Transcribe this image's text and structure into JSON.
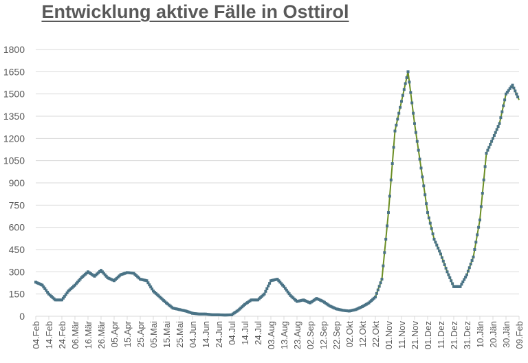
{
  "chart_data": {
    "type": "line",
    "title": "Entwicklung aktive Fälle in Osttirol",
    "xlabel": "",
    "ylabel": "",
    "ylim": [
      0,
      1800
    ],
    "yticks": [
      0,
      150,
      300,
      450,
      600,
      750,
      900,
      1050,
      1200,
      1350,
      1500,
      1650,
      1800
    ],
    "grid": true,
    "legend": null,
    "series_colors": {
      "markers": "#4a7386",
      "line": "#6b8e23"
    },
    "xtick_labels": [
      "04.Feb",
      "14.Feb",
      "24.Feb",
      "06.Mär",
      "16.Mär",
      "26.Mär",
      "05.Apr",
      "15.Apr",
      "25.Apr",
      "05.Mai",
      "15.Mai",
      "25.Mai",
      "04.Jun",
      "14.Jun",
      "24.Jun",
      "04.Jul",
      "14.Jul",
      "24.Jul",
      "03.Aug",
      "13.Aug",
      "23.Aug",
      "02.Sep",
      "12.Sep",
      "22.Sep",
      "02.Okt",
      "12.Okt",
      "22.Okt",
      "01.Nov",
      "11.Nov",
      "21.Nov",
      "01.Dez",
      "11.Dez",
      "21.Dez",
      "31.Dez",
      "10.Jän",
      "20.Jän",
      "30.Jän",
      "09.Feb"
    ],
    "x": [
      0,
      5,
      10,
      15,
      20,
      25,
      30,
      35,
      40,
      45,
      50,
      55,
      60,
      65,
      70,
      75,
      80,
      85,
      90,
      95,
      100,
      105,
      110,
      115,
      120,
      125,
      130,
      135,
      140,
      145,
      150,
      155,
      160,
      165,
      170,
      175,
      180,
      185,
      190,
      195,
      200,
      205,
      210,
      215,
      220,
      225,
      230,
      235,
      240,
      245,
      250,
      255,
      260,
      265,
      270,
      275,
      280,
      285,
      290,
      295,
      300,
      305,
      310,
      315,
      320,
      325,
      330,
      335,
      340,
      345,
      350,
      355,
      360,
      365,
      370
    ],
    "values": [
      230,
      210,
      150,
      110,
      110,
      170,
      210,
      260,
      300,
      270,
      310,
      260,
      240,
      280,
      295,
      290,
      250,
      240,
      170,
      130,
      90,
      55,
      45,
      35,
      20,
      15,
      15,
      10,
      10,
      8,
      10,
      40,
      80,
      110,
      110,
      150,
      240,
      250,
      200,
      140,
      100,
      110,
      90,
      120,
      100,
      70,
      50,
      40,
      35,
      45,
      65,
      90,
      130,
      250,
      700,
      1250,
      1450,
      1650,
      1300,
      1000,
      700,
      520,
      420,
      300,
      200,
      200,
      280,
      400,
      650,
      1100,
      1200,
      1300,
      1500,
      1560,
      1460
    ],
    "annotations": []
  },
  "title": "Entwicklung aktive Fälle in Osttirol"
}
